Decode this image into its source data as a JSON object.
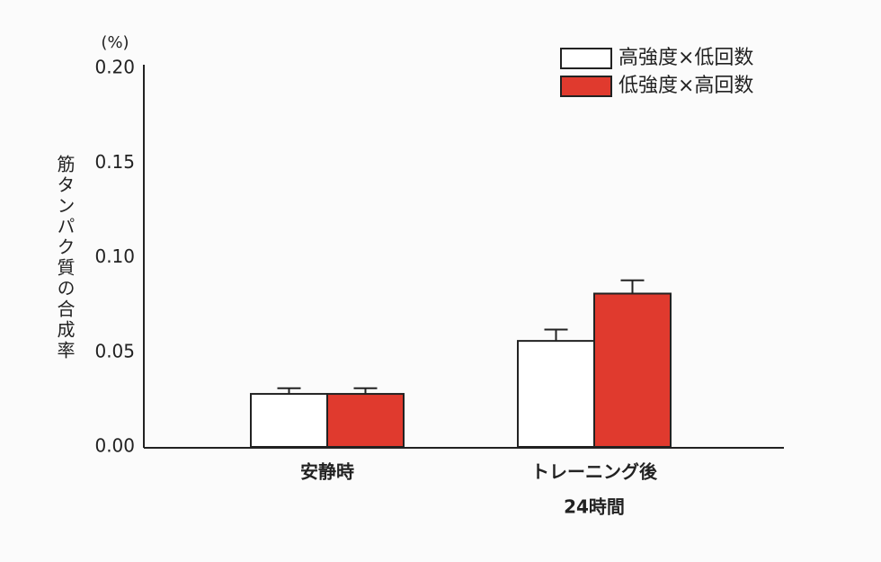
{
  "chart_data": {
    "type": "bar",
    "y_unit": "(%)",
    "ylabel": "筋タンパク質の合成率",
    "categories": [
      "安静時",
      "トレーニング後"
    ],
    "category_sublabels": [
      null,
      "24時間"
    ],
    "series": [
      {
        "name": "高強度×低回数",
        "color": "#ffffff",
        "values": [
          0.028,
          0.056
        ],
        "errors": [
          0.003,
          0.006
        ]
      },
      {
        "name": "低強度×高回数",
        "color": "#e03a2e",
        "values": [
          0.028,
          0.081
        ],
        "errors": [
          0.003,
          0.007
        ]
      }
    ],
    "ylim": [
      0,
      0.2
    ],
    "yticks": [
      {
        "value": 0,
        "label": "0.00"
      },
      0.05,
      {
        "value": 0.1,
        "label": "0.10"
      },
      0.15,
      {
        "value": 0.2,
        "label": "0.20"
      }
    ],
    "grid": false,
    "legend": "upper right"
  }
}
